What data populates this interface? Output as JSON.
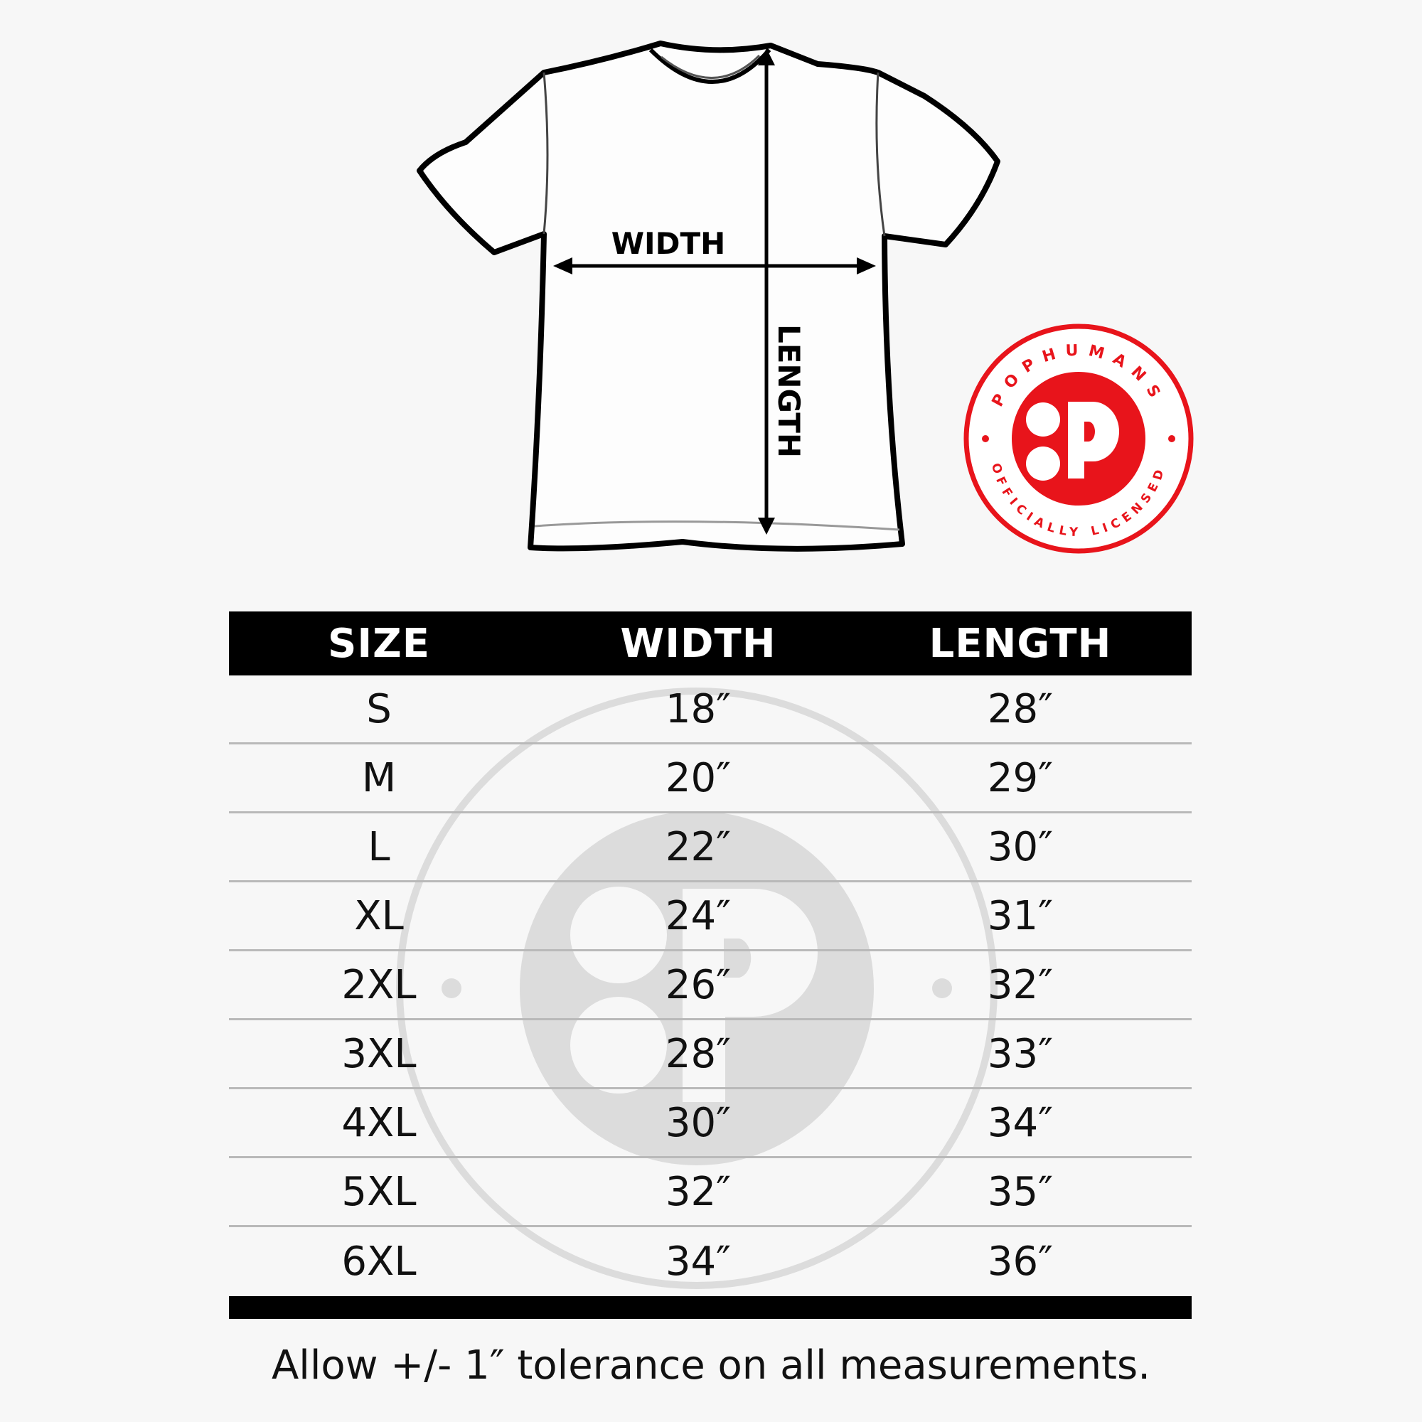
{
  "diagram": {
    "width_label": "WIDTH",
    "length_label": "LENGTH"
  },
  "badge": {
    "brand": "POPHUMANS",
    "subtitle": "OFFICIALLY LICENSED",
    "color": "#e8141b"
  },
  "table": {
    "headers": [
      "SIZE",
      "WIDTH",
      "LENGTH"
    ],
    "rows": [
      {
        "size": "S",
        "width": "18″",
        "length": "28″"
      },
      {
        "size": "M",
        "width": "20″",
        "length": "29″"
      },
      {
        "size": "L",
        "width": "22″",
        "length": "30″"
      },
      {
        "size": "XL",
        "width": "24″",
        "length": "31″"
      },
      {
        "size": "2XL",
        "width": "26″",
        "length": "32″"
      },
      {
        "size": "3XL",
        "width": "28″",
        "length": "33″"
      },
      {
        "size": "4XL",
        "width": "30″",
        "length": "34″"
      },
      {
        "size": "5XL",
        "width": "32″",
        "length": "35″"
      },
      {
        "size": "6XL",
        "width": "34″",
        "length": "36″"
      }
    ]
  },
  "footer": {
    "note": "Allow +/- 1″ tolerance on all measurements."
  }
}
